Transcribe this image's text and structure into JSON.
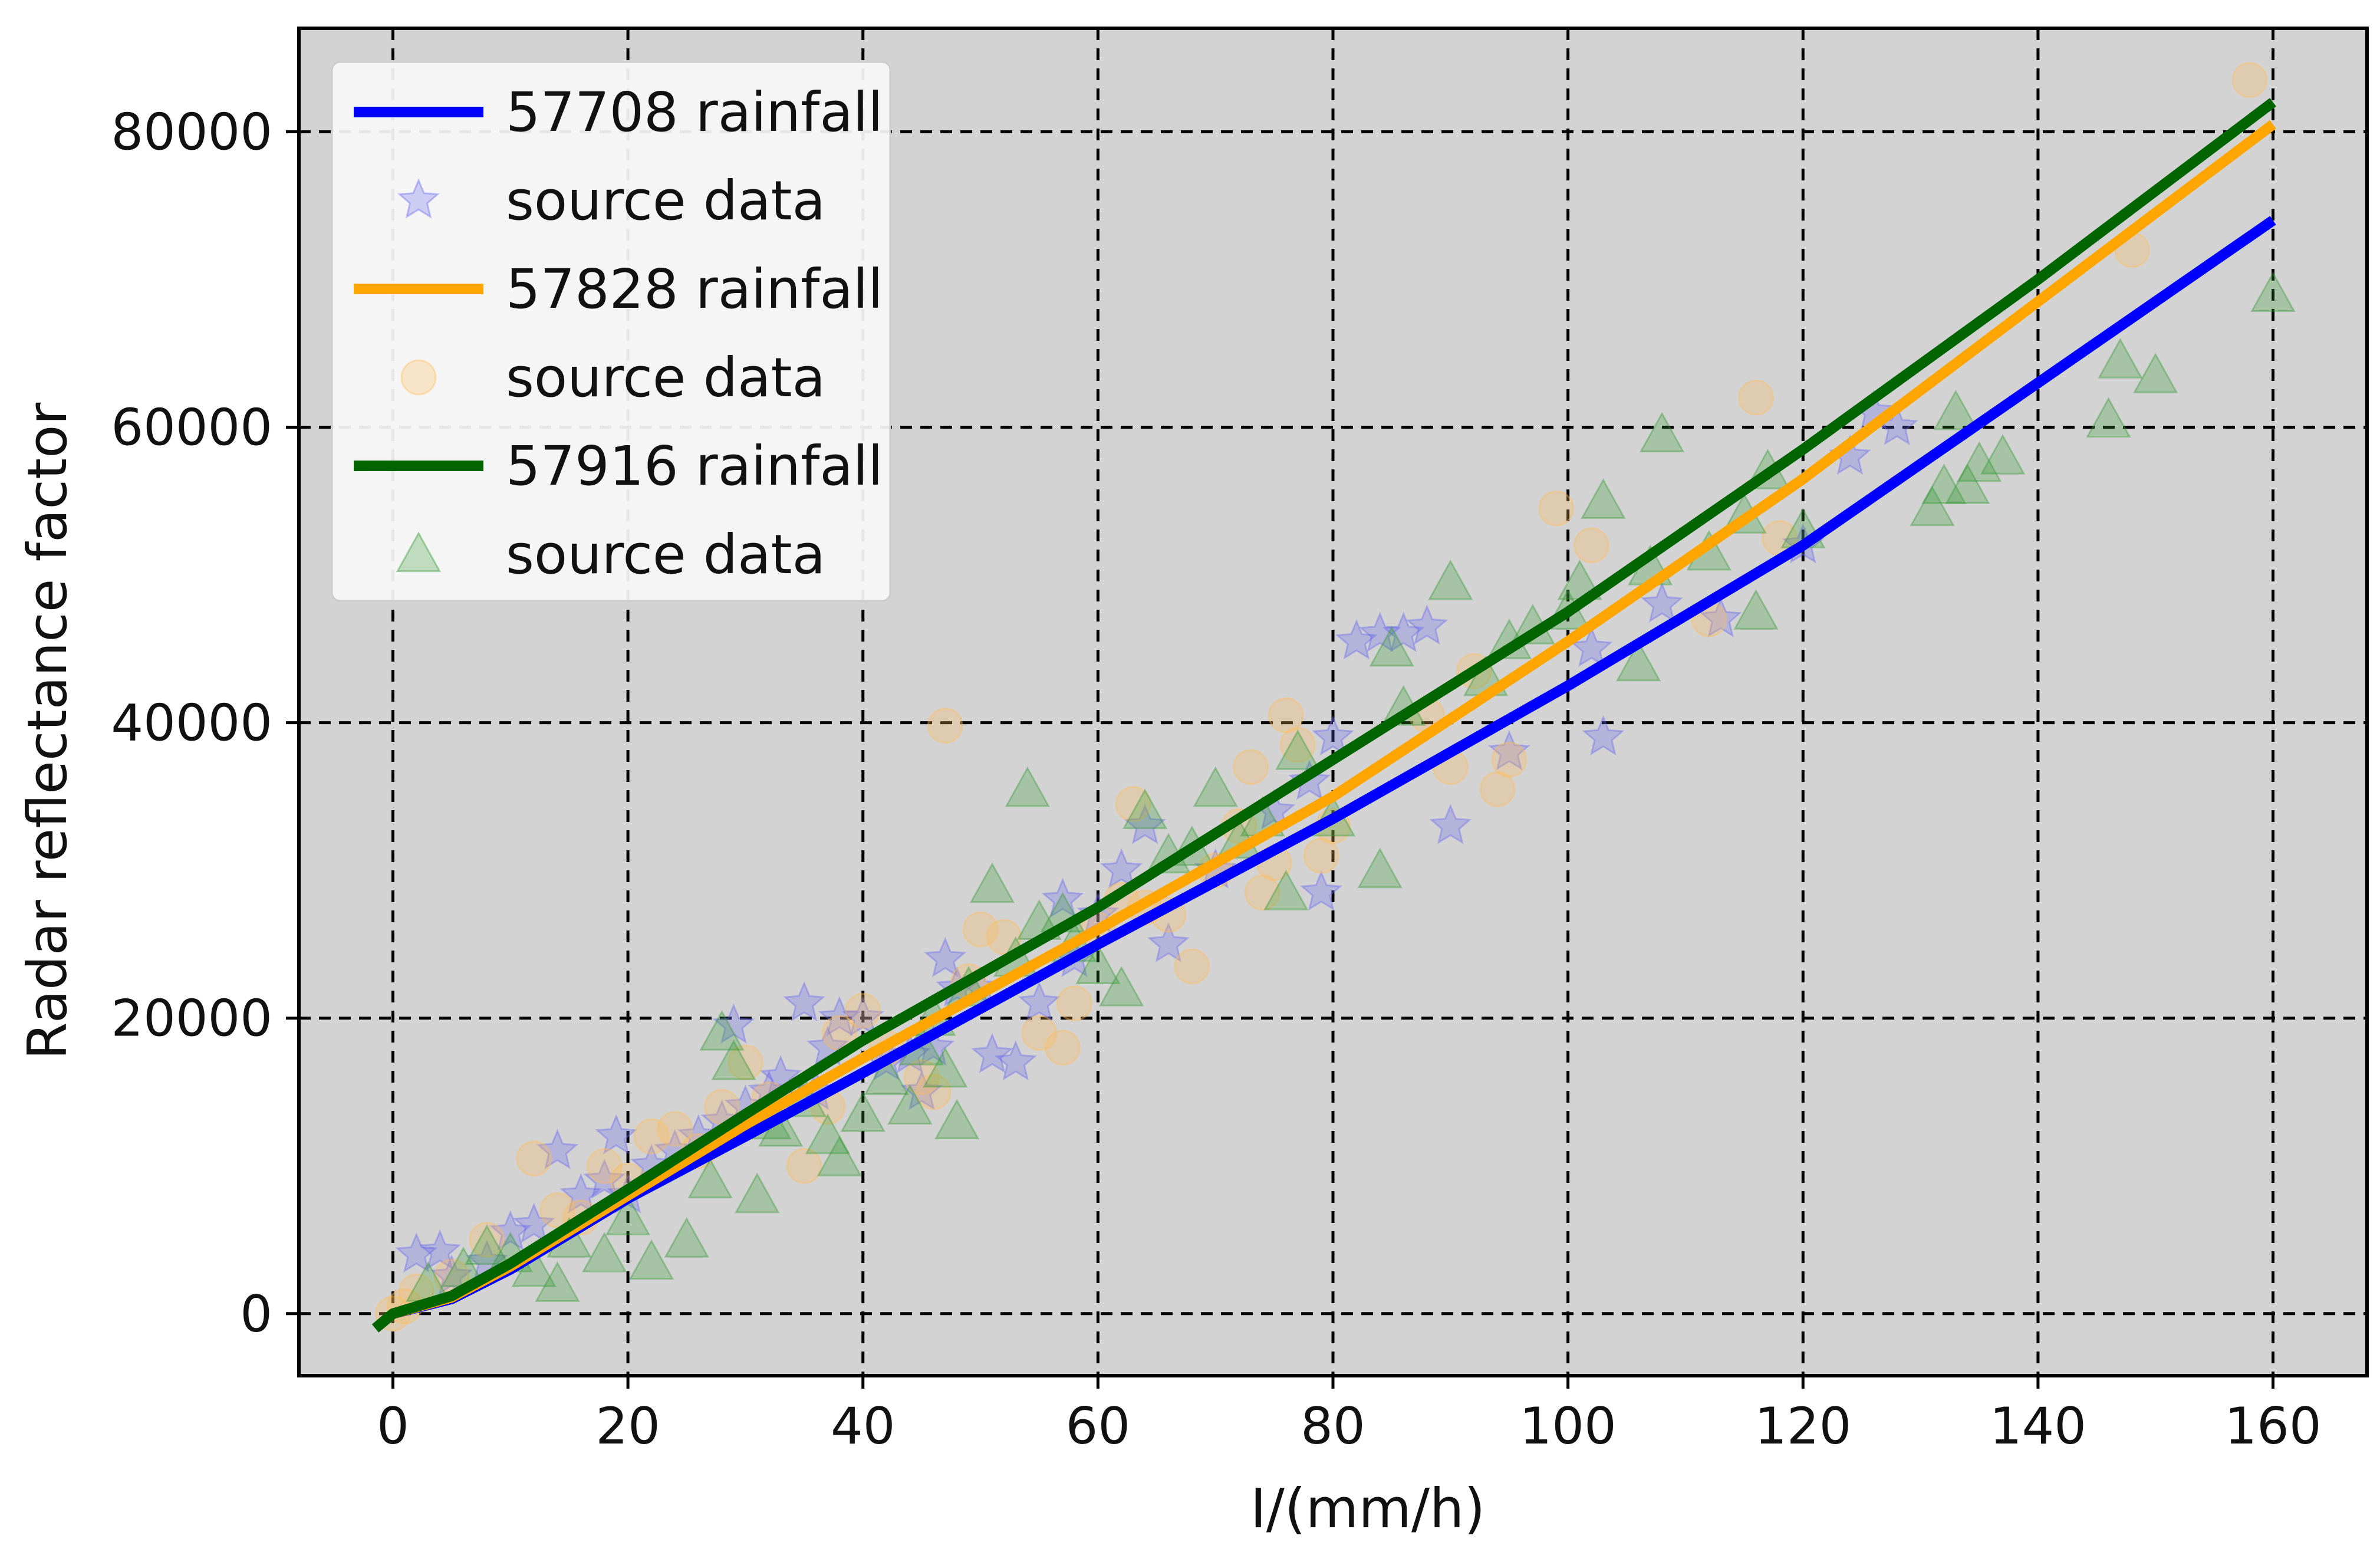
{
  "chart_data": {
    "type": "scatter",
    "title": "",
    "xlabel": "I/(mm/h)",
    "ylabel": "Radar reflectance factor",
    "xlim": [
      -8,
      168
    ],
    "ylim": [
      -4200,
      87000
    ],
    "xticks": [
      0,
      20,
      40,
      60,
      80,
      100,
      120,
      140,
      160
    ],
    "yticks": [
      0,
      20000,
      40000,
      60000,
      80000
    ],
    "xtick_labels": [
      "0",
      "20",
      "40",
      "60",
      "80",
      "100",
      "120",
      "140",
      "160"
    ],
    "ytick_labels": [
      "0",
      "20000",
      "40000",
      "60000",
      "80000"
    ],
    "grid": true,
    "legend_position": "top-left",
    "series": [
      {
        "name": "57708 rainfall",
        "kind": "line",
        "color": "#0000ff",
        "points": [
          [
            0,
            0
          ],
          [
            5,
            1000
          ],
          [
            10,
            3000
          ],
          [
            20,
            7800
          ],
          [
            30,
            12000
          ],
          [
            40,
            16300
          ],
          [
            60,
            25000
          ],
          [
            80,
            33500
          ],
          [
            100,
            42500
          ],
          [
            120,
            52000
          ],
          [
            140,
            63000
          ],
          [
            160,
            74000
          ]
        ]
      },
      {
        "name": "source data",
        "kind": "scatter",
        "marker": "star",
        "color": "#6666ee",
        "points": [
          [
            2,
            4000
          ],
          [
            4,
            4200
          ],
          [
            5,
            2500
          ],
          [
            8,
            3500
          ],
          [
            10,
            5500
          ],
          [
            12,
            6000
          ],
          [
            14,
            11000
          ],
          [
            16,
            8000
          ],
          [
            18,
            9000
          ],
          [
            19,
            12000
          ],
          [
            20,
            8000
          ],
          [
            22,
            10000
          ],
          [
            24,
            11000
          ],
          [
            26,
            12000
          ],
          [
            28,
            13000
          ],
          [
            29,
            19500
          ],
          [
            30,
            14000
          ],
          [
            32,
            15000
          ],
          [
            33,
            16000
          ],
          [
            35,
            21000
          ],
          [
            36,
            15000
          ],
          [
            37,
            18000
          ],
          [
            38,
            20000
          ],
          [
            40,
            20000
          ],
          [
            42,
            17000
          ],
          [
            44,
            17500
          ],
          [
            45,
            15000
          ],
          [
            46,
            18000
          ],
          [
            47,
            24000
          ],
          [
            48,
            22000
          ],
          [
            50,
            22000
          ],
          [
            51,
            17500
          ],
          [
            53,
            17000
          ],
          [
            55,
            21000
          ],
          [
            57,
            28000
          ],
          [
            58,
            24000
          ],
          [
            60,
            27000
          ],
          [
            62,
            30000
          ],
          [
            64,
            33000
          ],
          [
            66,
            25000
          ],
          [
            70,
            30000
          ],
          [
            75,
            34000
          ],
          [
            78,
            36000
          ],
          [
            79,
            28500
          ],
          [
            80,
            39000
          ],
          [
            82,
            45500
          ],
          [
            84,
            46000
          ],
          [
            86,
            46000
          ],
          [
            88,
            46500
          ],
          [
            90,
            33000
          ],
          [
            95,
            38000
          ],
          [
            102,
            45000
          ],
          [
            103,
            39000
          ],
          [
            108,
            48000
          ],
          [
            113,
            47000
          ],
          [
            120,
            52000
          ],
          [
            124,
            58000
          ],
          [
            126,
            61000
          ],
          [
            128,
            60000
          ]
        ]
      },
      {
        "name": "57828 rainfall",
        "kind": "line",
        "color": "#ffa500",
        "points": [
          [
            0,
            0
          ],
          [
            5,
            1100
          ],
          [
            10,
            3200
          ],
          [
            20,
            8000
          ],
          [
            30,
            12800
          ],
          [
            40,
            17300
          ],
          [
            60,
            26000
          ],
          [
            80,
            35000
          ],
          [
            100,
            45500
          ],
          [
            120,
            56500
          ],
          [
            140,
            68500
          ],
          [
            160,
            80500
          ]
        ]
      },
      {
        "name": "source data",
        "kind": "scatter",
        "marker": "circle",
        "color": "#ffbb55",
        "points": [
          [
            0,
            0
          ],
          [
            1,
            500
          ],
          [
            2,
            1500
          ],
          [
            5,
            2500
          ],
          [
            8,
            5000
          ],
          [
            12,
            10500
          ],
          [
            14,
            7000
          ],
          [
            16,
            6500
          ],
          [
            18,
            10000
          ],
          [
            20,
            9000
          ],
          [
            22,
            12000
          ],
          [
            24,
            12500
          ],
          [
            26,
            11000
          ],
          [
            28,
            14000
          ],
          [
            30,
            17000
          ],
          [
            32,
            14500
          ],
          [
            35,
            10000
          ],
          [
            37,
            14000
          ],
          [
            38,
            19000
          ],
          [
            40,
            20500
          ],
          [
            42,
            18000
          ],
          [
            45,
            16000
          ],
          [
            46,
            15000
          ],
          [
            47,
            39800
          ],
          [
            49,
            22500
          ],
          [
            50,
            26000
          ],
          [
            52,
            25500
          ],
          [
            55,
            19000
          ],
          [
            57,
            18000
          ],
          [
            58,
            21000
          ],
          [
            60,
            26000
          ],
          [
            62,
            28000
          ],
          [
            63,
            34500
          ],
          [
            64,
            27500
          ],
          [
            66,
            27000
          ],
          [
            68,
            23500
          ],
          [
            70,
            30000
          ],
          [
            72,
            33000
          ],
          [
            73,
            37000
          ],
          [
            74,
            28500
          ],
          [
            75,
            30500
          ],
          [
            76,
            40500
          ],
          [
            77,
            38500
          ],
          [
            79,
            31000
          ],
          [
            80,
            33000
          ],
          [
            88,
            40500
          ],
          [
            90,
            37000
          ],
          [
            92,
            43500
          ],
          [
            94,
            35500
          ],
          [
            95,
            37500
          ],
          [
            99,
            54500
          ],
          [
            102,
            52000
          ],
          [
            112,
            47000
          ],
          [
            116,
            62000
          ],
          [
            118,
            52500
          ],
          [
            148,
            72000
          ],
          [
            158,
            83500
          ]
        ]
      },
      {
        "name": "57916 rainfall",
        "kind": "line",
        "color": "#006400",
        "points": [
          [
            -1.5,
            -1000
          ],
          [
            0,
            0
          ],
          [
            5,
            1200
          ],
          [
            10,
            3400
          ],
          [
            20,
            8400
          ],
          [
            30,
            13500
          ],
          [
            40,
            18500
          ],
          [
            60,
            27500
          ],
          [
            80,
            37500
          ],
          [
            100,
            47500
          ],
          [
            120,
            58500
          ],
          [
            140,
            70000
          ],
          [
            160,
            82000
          ]
        ]
      },
      {
        "name": "source data",
        "kind": "scatter",
        "marker": "triangle",
        "color": "#339933",
        "points": [
          [
            3,
            2000
          ],
          [
            6,
            3000
          ],
          [
            8,
            4500
          ],
          [
            10,
            4000
          ],
          [
            12,
            3000
          ],
          [
            14,
            2000
          ],
          [
            15,
            5000
          ],
          [
            18,
            4000
          ],
          [
            20,
            6500
          ],
          [
            22,
            3500
          ],
          [
            25,
            5000
          ],
          [
            27,
            9000
          ],
          [
            28,
            19000
          ],
          [
            29,
            17000
          ],
          [
            31,
            8000
          ],
          [
            32,
            13000
          ],
          [
            33,
            12500
          ],
          [
            35,
            14500
          ],
          [
            37,
            12000
          ],
          [
            38,
            10500
          ],
          [
            40,
            13500
          ],
          [
            42,
            16000
          ],
          [
            44,
            14000
          ],
          [
            45,
            18000
          ],
          [
            46,
            20000
          ],
          [
            47,
            16500
          ],
          [
            48,
            13000
          ],
          [
            49,
            22000
          ],
          [
            51,
            29000
          ],
          [
            53,
            24000
          ],
          [
            54,
            35500
          ],
          [
            55,
            26500
          ],
          [
            57,
            27000
          ],
          [
            58,
            25000
          ],
          [
            60,
            23500
          ],
          [
            62,
            22000
          ],
          [
            64,
            34000
          ],
          [
            66,
            31000
          ],
          [
            68,
            31500
          ],
          [
            70,
            35500
          ],
          [
            72,
            32000
          ],
          [
            74,
            33500
          ],
          [
            76,
            28500
          ],
          [
            77,
            38000
          ],
          [
            80,
            33500
          ],
          [
            84,
            30000
          ],
          [
            85,
            45000
          ],
          [
            86,
            41000
          ],
          [
            90,
            49500
          ],
          [
            93,
            43000
          ],
          [
            95,
            45500
          ],
          [
            97,
            46500
          ],
          [
            100,
            47500
          ],
          [
            101,
            49500
          ],
          [
            103,
            55000
          ],
          [
            106,
            44000
          ],
          [
            107,
            50500
          ],
          [
            108,
            59500
          ],
          [
            112,
            51500
          ],
          [
            115,
            54000
          ],
          [
            116,
            47500
          ],
          [
            117,
            57000
          ],
          [
            120,
            53000
          ],
          [
            131,
            54500
          ],
          [
            132,
            56000
          ],
          [
            133,
            61000
          ],
          [
            134,
            56000
          ],
          [
            135,
            57500
          ],
          [
            137,
            58000
          ],
          [
            146,
            60500
          ],
          [
            147,
            64500
          ],
          [
            150,
            63500
          ],
          [
            160,
            69000
          ]
        ]
      }
    ]
  }
}
